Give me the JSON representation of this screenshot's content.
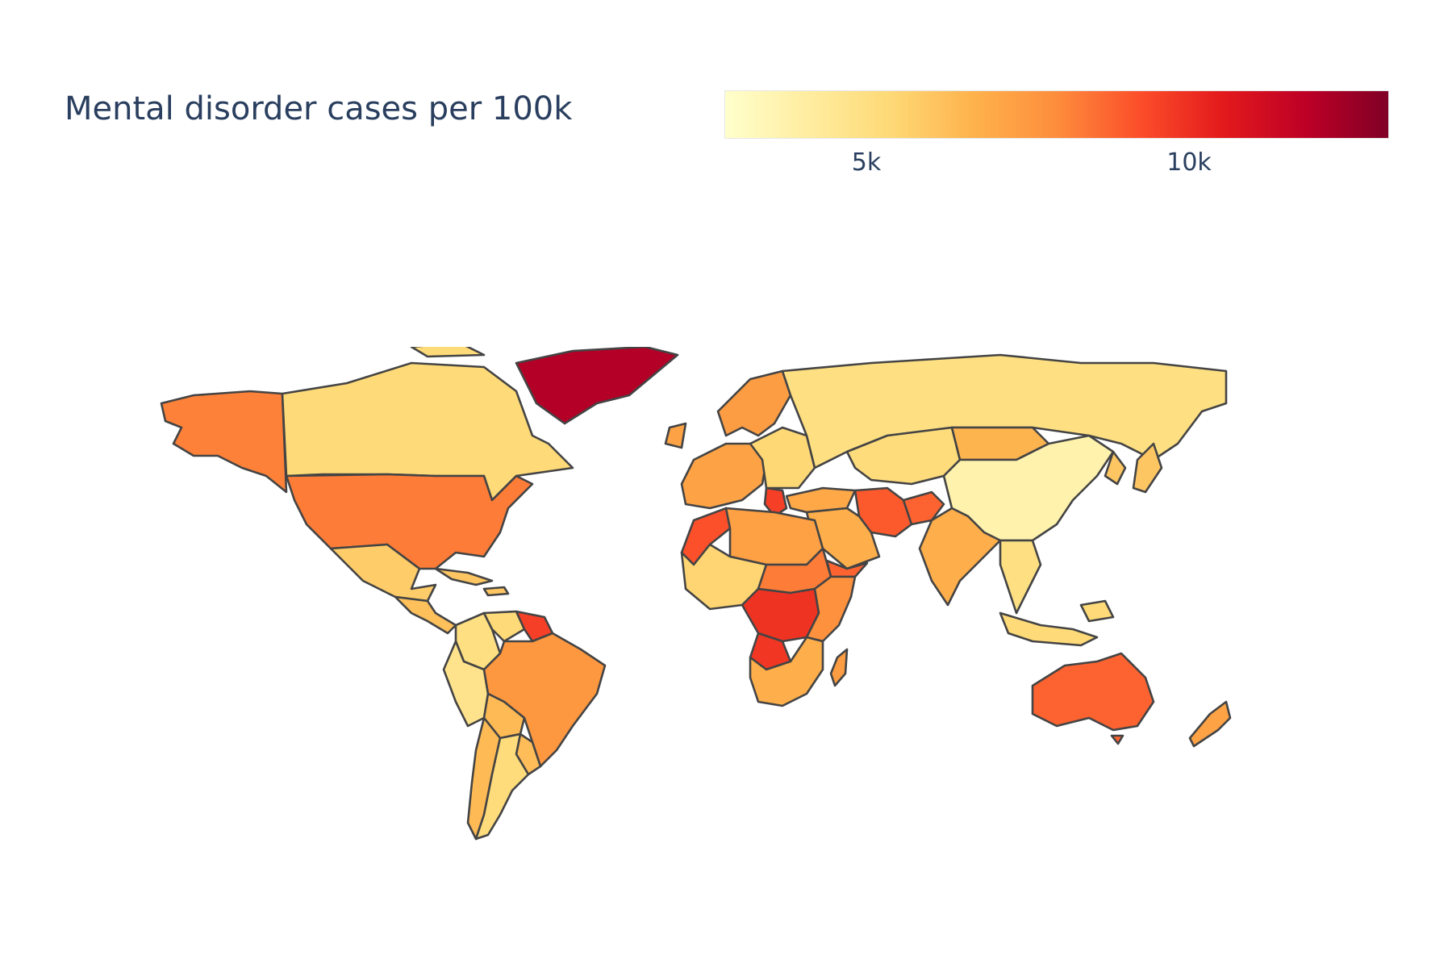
{
  "title": "Mental disorder cases per 100k",
  "colorbar": {
    "min": 2800,
    "max": 13100,
    "stops": [
      "#ffffcc",
      "#ffeda0",
      "#fed976",
      "#feb24c",
      "#fd8d3c",
      "#fc4e2a",
      "#e31a1c",
      "#bd0026",
      "#800026"
    ],
    "ticks": [
      {
        "value": 5000,
        "label": "5k"
      },
      {
        "value": 10000,
        "label": "10k"
      }
    ]
  },
  "map_data": {
    "projection": "equirectangular",
    "lon_range": [
      -170,
      180
    ],
    "lat_range": [
      -57,
      84
    ],
    "regions": [
      {
        "id": "alaska",
        "value": 8200
      },
      {
        "id": "canada",
        "value": 5300
      },
      {
        "id": "greenland",
        "value": 12000
      },
      {
        "id": "usa",
        "value": 8300
      },
      {
        "id": "mexico",
        "value": 5800
      },
      {
        "id": "central-america",
        "value": 6200
      },
      {
        "id": "caribbean",
        "value": 6000
      },
      {
        "id": "colombia",
        "value": 5000
      },
      {
        "id": "venezuela",
        "value": 5300
      },
      {
        "id": "guianas",
        "value": 9600
      },
      {
        "id": "ecuador-peru",
        "value": 4700
      },
      {
        "id": "brazil",
        "value": 7600
      },
      {
        "id": "bolivia",
        "value": 6400
      },
      {
        "id": "argentina",
        "value": 5200
      },
      {
        "id": "chile",
        "value": 6400
      },
      {
        "id": "paraguay-uruguay",
        "value": 6300
      },
      {
        "id": "western-europe",
        "value": 7200
      },
      {
        "id": "scandinavia",
        "value": 7400
      },
      {
        "id": "eastern-europe",
        "value": 5400
      },
      {
        "id": "greece",
        "value": 9600
      },
      {
        "id": "russia",
        "value": 5000
      },
      {
        "id": "turkey",
        "value": 7000
      },
      {
        "id": "central-asia",
        "value": 5200
      },
      {
        "id": "mongolia",
        "value": 6600
      },
      {
        "id": "china",
        "value": 3700
      },
      {
        "id": "japan-korea",
        "value": 6000
      },
      {
        "id": "iran",
        "value": 9000
      },
      {
        "id": "afghanistan",
        "value": 8800
      },
      {
        "id": "arabia",
        "value": 6800
      },
      {
        "id": "yemen",
        "value": 8800
      },
      {
        "id": "india",
        "value": 6800
      },
      {
        "id": "southeast-asia",
        "value": 5000
      },
      {
        "id": "indonesia",
        "value": 5300
      },
      {
        "id": "morocco",
        "value": 9200
      },
      {
        "id": "north-africa",
        "value": 7300
      },
      {
        "id": "west-africa",
        "value": 5500
      },
      {
        "id": "chad-sudan",
        "value": 8300
      },
      {
        "id": "central-africa",
        "value": 9900
      },
      {
        "id": "east-africa",
        "value": 7800
      },
      {
        "id": "angola",
        "value": 9800
      },
      {
        "id": "southern-africa",
        "value": 6800
      },
      {
        "id": "madagascar",
        "value": 7400
      },
      {
        "id": "australia",
        "value": 8800
      },
      {
        "id": "new-zealand",
        "value": 7200
      }
    ]
  }
}
